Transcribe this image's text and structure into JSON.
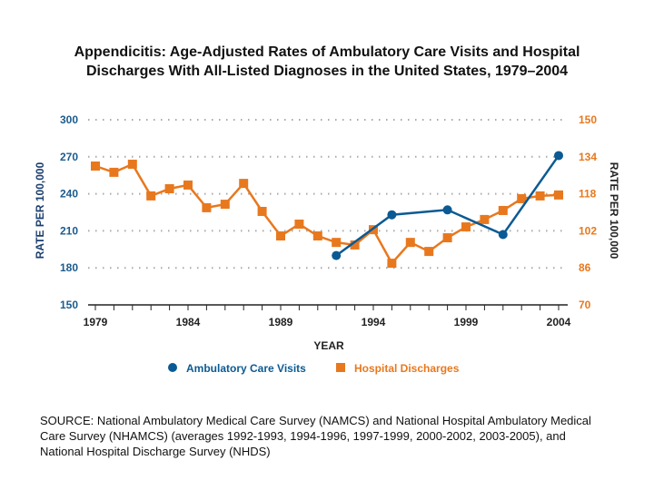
{
  "title_line1": "Appendicitis:  Age-Adjusted Rates of Ambulatory Care Visits and Hospital",
  "title_line2": "Discharges With All-Listed Diagnoses in the United States, 1979–2004",
  "source": "SOURCE: National Ambulatory Medical Care Survey (NAMCS) and National Hospital Ambulatory Medical Care Survey (NHAMCS) (averages 1992-1993, 1994-1996, 1997-1999, 2000-2002, 2003-2005), and National Hospital Discharge Survey (NHDS)",
  "chart_data": {
    "type": "line",
    "xlabel": "YEAR",
    "ylabel": "RATE PER 100,000",
    "y2label": "RATE PER 100,000",
    "xlim": [
      1979,
      2004
    ],
    "xticks": [
      1979,
      1984,
      1989,
      1994,
      1999,
      2004
    ],
    "ylim": [
      150,
      300
    ],
    "yticks": [
      150,
      180,
      210,
      240,
      270,
      300
    ],
    "y2lim": [
      70,
      150
    ],
    "y2ticks": [
      70,
      86,
      102,
      118,
      134,
      150
    ],
    "grid": true,
    "legend": "bottom",
    "series": [
      {
        "name": "Ambulatory Care Visits",
        "axis": "left",
        "color": "#0b5a93",
        "marker": "circle",
        "x": [
          1992,
          1995,
          1998,
          2001,
          2004
        ],
        "values": [
          190,
          223,
          227,
          207,
          271
        ]
      },
      {
        "name": "Hospital Discharges",
        "axis": "right",
        "color": "#e8781e",
        "marker": "square",
        "x": [
          1979,
          1980,
          1981,
          1982,
          1983,
          1984,
          1985,
          1986,
          1987,
          1988,
          1989,
          1990,
          1991,
          1992,
          1993,
          1994,
          1995,
          1996,
          1997,
          1998,
          1999,
          2000,
          2001,
          2002,
          2003,
          2004
        ],
        "values": [
          130,
          127.3,
          130.8,
          117.1,
          120.2,
          121.8,
          112,
          113.5,
          122.5,
          110.4,
          99.8,
          104.9,
          99.8,
          97,
          95.9,
          102.5,
          88,
          97,
          93.1,
          99,
          103.7,
          106.9,
          110.8,
          115.9,
          117.1,
          117.5
        ]
      }
    ]
  }
}
